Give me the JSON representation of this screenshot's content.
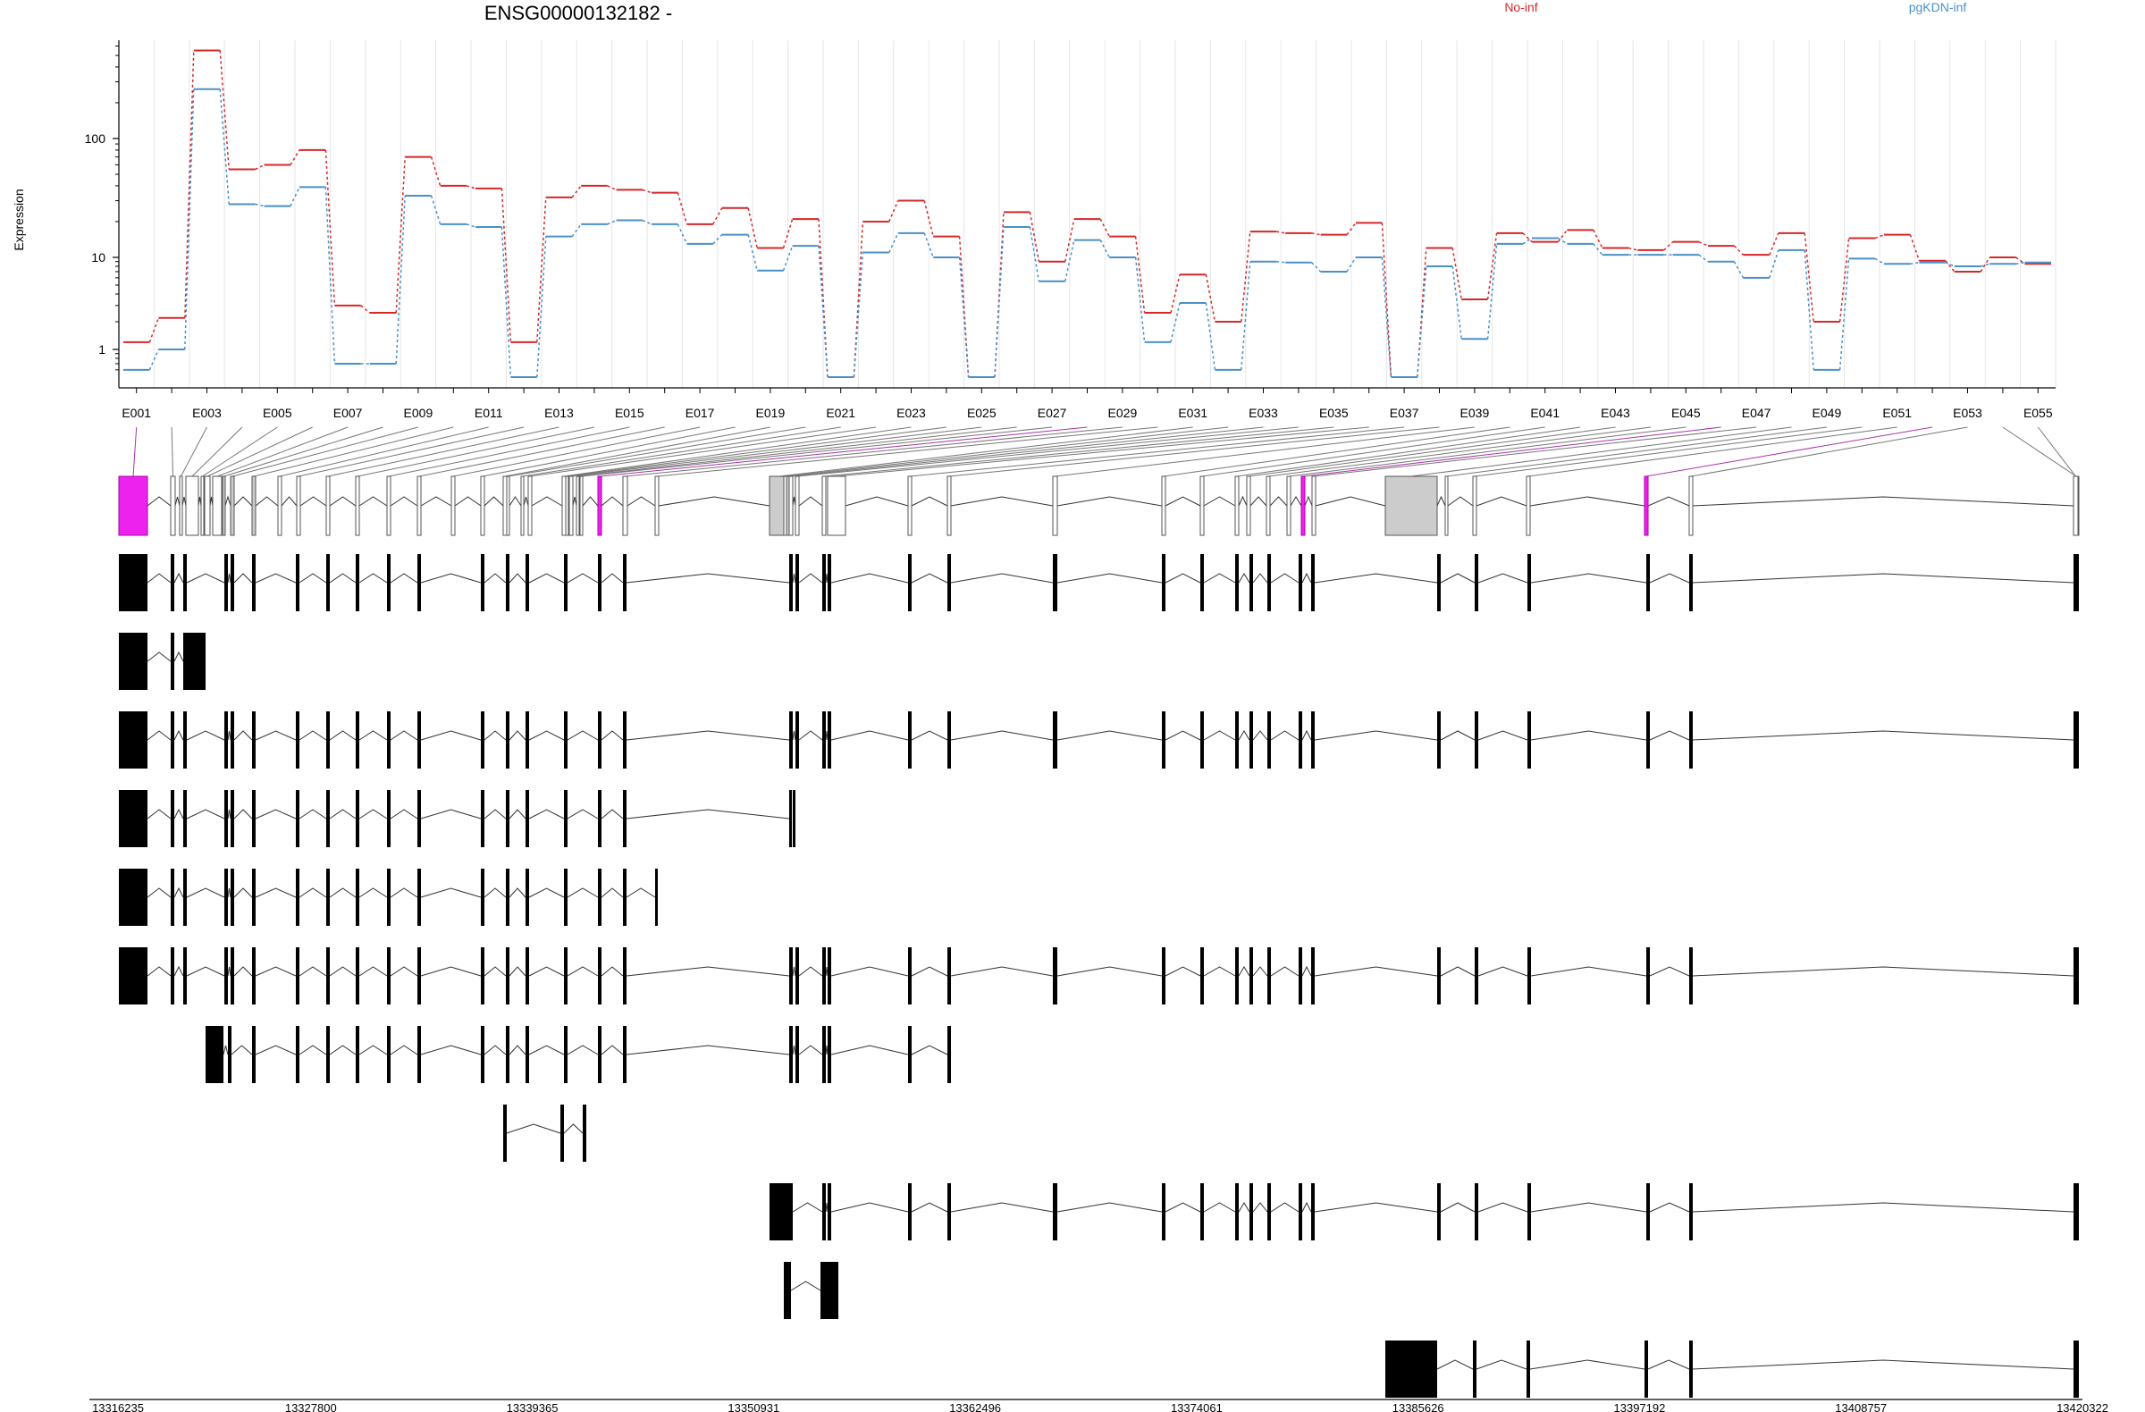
{
  "chart_data": {
    "type": "line",
    "title": "ENSG00000132182 -",
    "ylabel": "Expression",
    "yscale": "log",
    "yticks": [
      "1",
      "10",
      "100"
    ],
    "ylim": [
      0.5,
      700
    ],
    "exon_labels": [
      "E001",
      "E003",
      "E005",
      "E007",
      "E009",
      "E011",
      "E013",
      "E015",
      "E017",
      "E019",
      "E021",
      "E023",
      "E025",
      "E027",
      "E029",
      "E031",
      "E033",
      "E035",
      "E037",
      "E039",
      "E041",
      "E043",
      "E045",
      "E047",
      "E049",
      "E051",
      "E053",
      "E055"
    ],
    "series": [
      {
        "name": "No-inf",
        "color": "#d62728",
        "values": [
          1.2,
          2.2,
          550,
          55,
          60,
          80,
          3.0,
          2.5,
          70,
          40,
          38,
          1.2,
          32,
          40,
          37,
          35,
          19,
          26,
          12,
          21,
          0.5,
          20,
          30,
          15,
          0.5,
          24,
          9,
          21,
          15,
          2.5,
          6.5,
          2.0,
          16.5,
          16,
          15.5,
          19.5,
          0.5,
          12,
          3.5,
          16,
          13.5,
          17,
          12,
          11.5,
          13.5,
          12.5,
          10.5,
          16,
          2.0,
          14.5,
          15.5,
          9.2,
          7,
          10,
          8.5
        ]
      },
      {
        "name": "pgKDN-inf",
        "color": "#4a90c8",
        "values": [
          0.6,
          1.0,
          260,
          28,
          27,
          39,
          0.7,
          0.7,
          33,
          19,
          18,
          0.5,
          15,
          19,
          20.5,
          19,
          13,
          15.5,
          7.2,
          12.5,
          0.5,
          11,
          16,
          10,
          0.5,
          18,
          5.5,
          14,
          10,
          1.2,
          3.2,
          0.6,
          9.0,
          8.8,
          7,
          10,
          0.5,
          8,
          1.3,
          13,
          14.5,
          13,
          10.5,
          10.5,
          10.5,
          9,
          6,
          11.5,
          0.6,
          9.7,
          8.5,
          8.8,
          8,
          8.5,
          8.8
        ]
      }
    ],
    "highlighted_exons": [
      "E001",
      "E028",
      "E046",
      "E052"
    ],
    "genomic_ticks": [
      "13316235",
      "13327800",
      "13339365",
      "13350931",
      "13362496",
      "13374061",
      "13385626",
      "13397192",
      "13408757",
      "13420322"
    ],
    "genomic_range": [
      13316235,
      13420322
    ]
  }
}
